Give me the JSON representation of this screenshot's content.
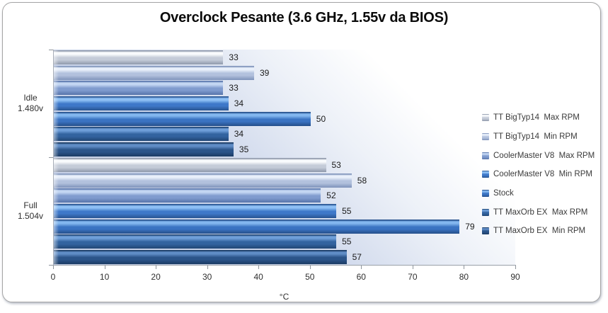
{
  "chart_data": {
    "type": "bar",
    "orientation": "horizontal",
    "title": "Overclock Pesante (3.6 GHz, 1.55v da BIOS)",
    "categories": [
      {
        "lines": [
          "Idle",
          "1.480v"
        ]
      },
      {
        "lines": [
          "Full",
          "1.504v"
        ]
      }
    ],
    "series": [
      {
        "name": "TT BigTyp14  Max RPM",
        "values": [
          33,
          53
        ],
        "color_light": "#f9fbfd",
        "color_mid": "#c4cbd8",
        "color_dark": "#939daf"
      },
      {
        "name": "TT BigTyp14  Min RPM",
        "values": [
          39,
          58
        ],
        "color_light": "#e9f0fb",
        "color_mid": "#b2c1dd",
        "color_dark": "#8296bd"
      },
      {
        "name": "CoolerMaster V8  Max RPM",
        "values": [
          33,
          52
        ],
        "color_light": "#c3d6f2",
        "color_mid": "#7f9bce",
        "color_dark": "#5a77ad"
      },
      {
        "name": "CoolerMaster V8  Min RPM",
        "values": [
          34,
          55
        ],
        "color_light": "#8ec0f5",
        "color_mid": "#3e78c9",
        "color_dark": "#2a5795"
      },
      {
        "name": "Stock",
        "values": [
          50,
          79
        ],
        "color_light": "#83b7ef",
        "color_mid": "#3a73c2",
        "color_dark": "#27528e"
      },
      {
        "name": "TT MaxOrb EX  Max RPM",
        "values": [
          34,
          55
        ],
        "color_light": "#6f9fd9",
        "color_mid": "#32639f",
        "color_dark": "#224877"
      },
      {
        "name": "TT MaxOrb EX  Min RPM",
        "values": [
          35,
          57
        ],
        "color_light": "#608dc6",
        "color_mid": "#2b5489",
        "color_dark": "#1c3d66"
      }
    ],
    "xlabel": "°C",
    "xlim": [
      0,
      90
    ],
    "xticks": [
      0,
      10,
      20,
      30,
      40,
      50,
      60,
      70,
      80,
      90
    ],
    "data_labels": true,
    "grid": false,
    "legend_position": "right",
    "plot_bg_from": "#c5cfe6",
    "plot_bg_to": "#ffffff"
  }
}
